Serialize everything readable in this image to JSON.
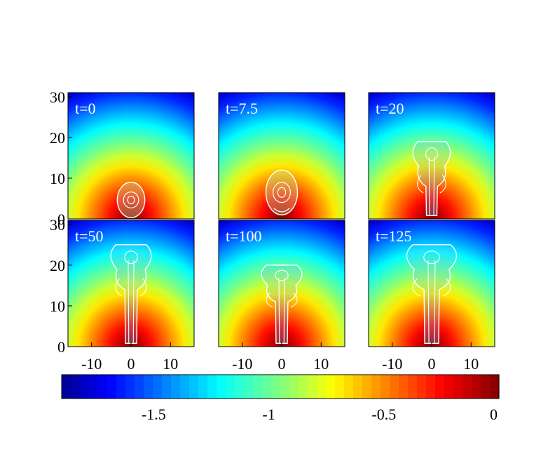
{
  "chart_data": {
    "type": "heatmap",
    "title": "",
    "xlabel": "",
    "ylabel": "",
    "panels": [
      {
        "label": "t=0",
        "time": 0,
        "plume": {
          "top": 9,
          "width": 3.5,
          "stem": 0,
          "cap": "bubble"
        }
      },
      {
        "label": "t=7.5",
        "time": 7.5,
        "plume": {
          "top": 12,
          "width": 4,
          "stem": 3,
          "cap": "bubble"
        }
      },
      {
        "label": "t=20",
        "time": 20,
        "plume": {
          "top": 19,
          "width": 6,
          "stem": 8,
          "cap": "mushroom"
        }
      },
      {
        "label": "t=50",
        "time": 50,
        "plume": {
          "top": 25,
          "width": 6.5,
          "stem": 14,
          "cap": "mushroom"
        }
      },
      {
        "label": "t=100",
        "time": 100,
        "plume": {
          "top": 20,
          "width": 6.5,
          "stem": 11,
          "cap": "mushroom"
        }
      },
      {
        "label": "t=125",
        "time": 125,
        "plume": {
          "top": 25,
          "width": 8,
          "stem": 14,
          "cap": "mushroom"
        }
      }
    ],
    "xlim": [
      -16,
      16
    ],
    "ylim": [
      0,
      31
    ],
    "xticks": [
      -10,
      0,
      10
    ],
    "xtick_labels": [
      "-10",
      "0",
      "10"
    ],
    "yticks": [
      0,
      10,
      20,
      30
    ],
    "ytick_labels": [
      "0",
      "10",
      "20",
      "30"
    ],
    "colorbar": {
      "min": -1.9,
      "max": 0,
      "ticks": [
        -1.5,
        -1,
        -0.5,
        0
      ],
      "tick_labels": [
        "-1.5",
        "-1",
        "-0.5",
        "0"
      ],
      "colormap": "jet"
    },
    "field": {
      "center": [
        0,
        0
      ],
      "value_at_center": 0,
      "value_at_edge": -1.9
    },
    "grid": false,
    "legend": "none"
  }
}
